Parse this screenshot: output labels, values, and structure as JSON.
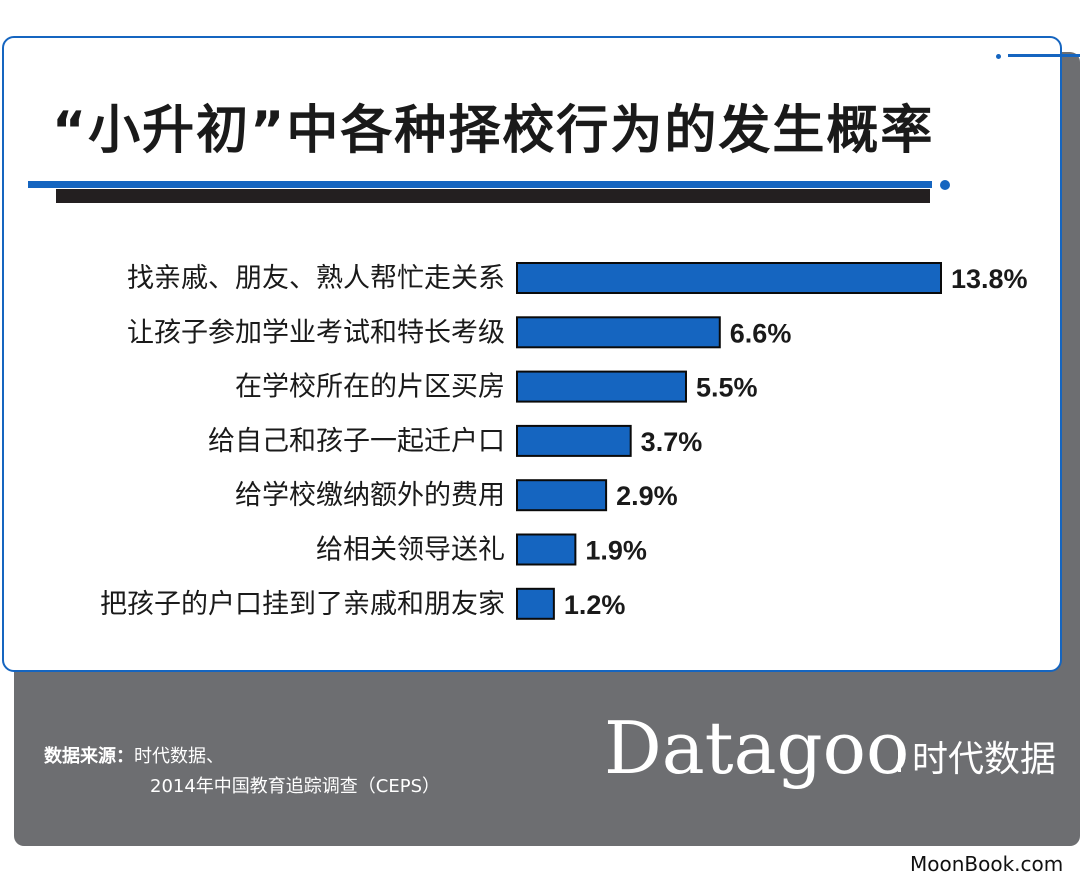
{
  "title": "“小升初”中各种择校行为的发生概率",
  "chart_data": {
    "type": "bar",
    "orientation": "horizontal",
    "categories": [
      "找亲戚、朋友、熟人帮忙走关系",
      "让孩子参加学业考试和特长考级",
      "在学校所在的片区买房",
      "给自己和孩子一起迁户口",
      "给学校缴纳额外的费用",
      "给相关领导送礼",
      "把孩子的户口挂到了亲戚和朋友家"
    ],
    "values": [
      13.8,
      6.6,
      5.5,
      3.7,
      2.9,
      1.9,
      1.2
    ],
    "value_labels": [
      "13.8%",
      "6.6%",
      "5.5%",
      "3.7%",
      "2.9%",
      "1.9%",
      "1.2%"
    ],
    "unit": "%",
    "xlim": [
      0,
      13.8
    ],
    "grid": false,
    "colors": {
      "bar": "#1565c0",
      "bar_edge": "#0a0a0a",
      "label": "#1a1a1a"
    }
  },
  "source": {
    "label": "数据来源：",
    "line1": "时代数据、",
    "line2": "2014年中国教育追踪调查（CEPS）"
  },
  "brand": {
    "name": "Datagoo",
    "cn": "时代数据"
  },
  "watermark": "MoonBook.com",
  "colors": {
    "accent": "#1565c0",
    "footer": "#6d6e71",
    "rule_dark": "#231f20"
  }
}
